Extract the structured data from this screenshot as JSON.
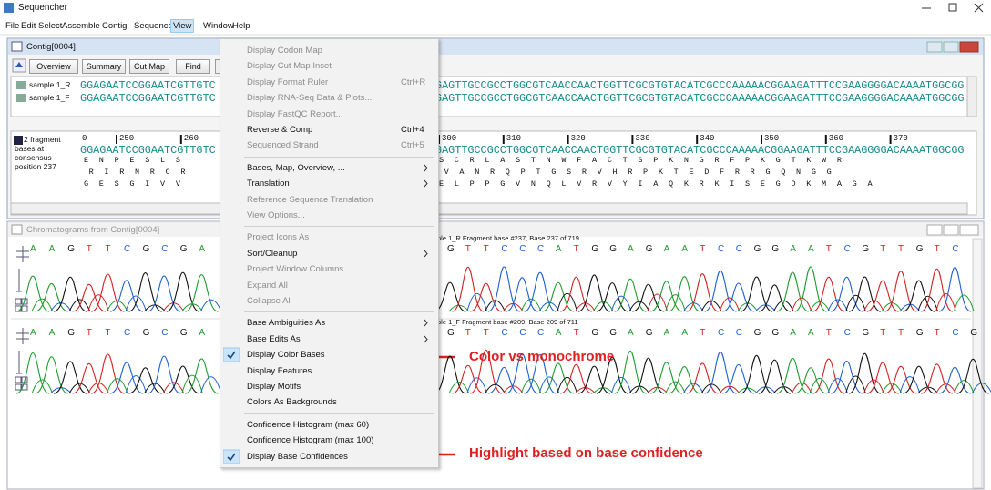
{
  "app": {
    "title": "Sequencher"
  },
  "menubar": [
    "File",
    "Edit",
    "Select",
    "Assemble",
    "Contig",
    "Sequence",
    "View",
    "Window",
    "Help"
  ],
  "contig": {
    "title": "Contig[0004]",
    "toolbar": [
      "Overview",
      "Summary",
      "Cut Map",
      "Find"
    ],
    "reads": [
      {
        "name": "sample 1_R",
        "left": "GGAGAATCCGGAATCGTTGTC",
        "right": "GAGTTGCCGCCTGGCGTCAACCAACTGGTTCGCGTGTACATCGCCCAAAAACGGAAGATTTCCGAAGGGGACAAAATGGCGG"
      },
      {
        "name": "sample 1_F",
        "left": "GGAGAATCCGGAATCGTTGTC",
        "right": "GAGTTGCCGCCTGGCGTCAACCAACTGGTTCGCGTGTACATCGCCCAAAAACGGAAGATTTCCGAAGGGGACAAAATGGCGG"
      }
    ],
    "consensus_info": [
      "2 fragment",
      "bases at",
      "consensus",
      "position 237"
    ],
    "ruler": {
      "start": 0,
      "ticks": [
        250,
        260,
        300,
        310,
        320,
        330,
        340,
        350,
        360,
        370
      ]
    },
    "consensus": {
      "left": "GGAGAATCCGGAATCGTTGTC",
      "right": "GAGTTGCCGCCTGGCGTCAACCAACTGGTTCGCGTGTACATCGCCCAAAAACGGAAGATTTCCGAAGGGGACAAAATGGCGG"
    },
    "translations": [
      {
        "left": "E  N  P  E  S  L  S",
        "right": "S  C  R  L  A  S  T  N  W  F  A  C  T  S  P  K  N  G  R  F  P  K  G  T  K  W  R"
      },
      {
        "left": " R  I  R  N  R  C  R",
        "right": " V  A  N  R  Q  P  T  G  S  R  V  H  R  P  K  T  E  D  F  R  R  G  Q  N  G  G"
      },
      {
        "left": "G  E  S  G  I  V  V",
        "right": "E  L  P  P  G  V  N  Q  L  V  R  V  Y  I  A  Q  K  R  K  I  S  E  G  D  K  M  A  G  A"
      }
    ]
  },
  "chromatograms": {
    "title": "Chromatograms from Contig[0004]",
    "traces": [
      {
        "label": "ple 1_R Fragment base #237, Base 237 of 719",
        "left_bases": [
          "A",
          "A",
          "G",
          "T",
          "T",
          "C",
          "G",
          "C",
          "G",
          "A"
        ],
        "right_bases": [
          "G",
          "T",
          "T",
          "C",
          "C",
          "C",
          "A",
          "T",
          "G",
          "G",
          "A",
          "G",
          "A",
          "A",
          "T",
          "C",
          "C",
          "G",
          "G",
          "A",
          "A",
          "T",
          "C",
          "G",
          "T",
          "T",
          "G",
          "T",
          "C"
        ]
      },
      {
        "label": "ple 1_F Fragment base #209, Base 209 of 711",
        "left_bases": [
          "A",
          "A",
          "G",
          "T",
          "T",
          "C",
          "G",
          "C",
          "G",
          "A"
        ],
        "right_bases": [
          "G",
          "T",
          "T",
          "C",
          "C",
          "C",
          "A",
          "T",
          "G",
          "G",
          "A",
          "G",
          "A",
          "A",
          "T",
          "C",
          "C",
          "G",
          "G",
          "A",
          "A",
          "T",
          "C",
          "G",
          "T",
          "T",
          "G",
          "T",
          "C",
          "G"
        ]
      }
    ]
  },
  "view_menu": [
    [
      {
        "label": "Display Codon Map",
        "enabled": false
      },
      {
        "label": "Display Cut Map Inset",
        "enabled": false
      },
      {
        "label": "Display Format Ruler",
        "shortcut": "Ctrl+R",
        "enabled": false
      },
      {
        "label": "Display RNA-Seq Data & Plots...",
        "enabled": false
      },
      {
        "label": "Display FastQC Report...",
        "enabled": false
      },
      {
        "label": "Reverse & Comp",
        "shortcut": "Ctrl+4",
        "enabled": true
      },
      {
        "label": "Sequenced Strand",
        "shortcut": "Ctrl+5",
        "enabled": false
      }
    ],
    [
      {
        "label": "Bases, Map, Overview, ...",
        "enabled": true,
        "submenu": true
      },
      {
        "label": "Translation",
        "enabled": true,
        "submenu": true
      },
      {
        "label": "Reference Sequence Translation",
        "enabled": false
      },
      {
        "label": "View Options...",
        "enabled": false
      }
    ],
    [
      {
        "label": "Project Icons As",
        "enabled": false
      },
      {
        "label": "Sort/Cleanup",
        "enabled": true,
        "submenu": true
      },
      {
        "label": "Project Window Columns",
        "enabled": false
      },
      {
        "label": "Expand All",
        "enabled": false
      },
      {
        "label": "Collapse All",
        "enabled": false
      }
    ],
    [
      {
        "label": "Base Ambiguities As",
        "enabled": true,
        "submenu": true
      },
      {
        "label": "Base Edits As",
        "enabled": true,
        "submenu": true
      },
      {
        "label": "Display Color Bases",
        "enabled": true,
        "checked": true
      },
      {
        "label": "Display Features",
        "enabled": true
      },
      {
        "label": "Display Motifs",
        "enabled": true
      },
      {
        "label": "Colors As Backgrounds",
        "enabled": true
      }
    ],
    [
      {
        "label": "Confidence Histogram (max 60)",
        "enabled": true
      },
      {
        "label": "Confidence Histogram (max 100)",
        "enabled": true
      },
      {
        "label": "Display Base Confidences",
        "enabled": true,
        "checked": true
      }
    ]
  ],
  "annotations": [
    "Color vs monochrome",
    "Highlight based on base confidence"
  ]
}
